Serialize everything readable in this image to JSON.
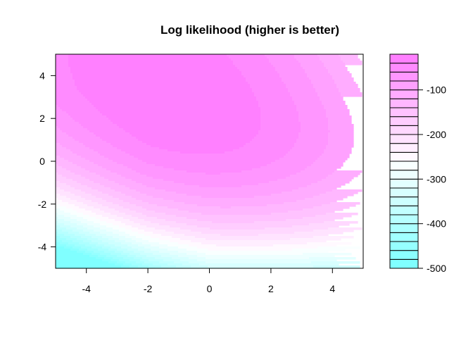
{
  "chart_data": {
    "type": "heatmap",
    "title": "Log likelihood (higher is better)",
    "xlabel": "",
    "ylabel": "",
    "xlim": [
      -5,
      5
    ],
    "ylim": [
      -5,
      5
    ],
    "x_ticks": [
      -4,
      -2,
      0,
      2,
      4
    ],
    "y_ticks": [
      -4,
      -2,
      0,
      2,
      4
    ],
    "z_range": [
      -500,
      -20
    ],
    "z_levels": [
      -500,
      -480,
      -460,
      -440,
      -420,
      -400,
      -380,
      -360,
      -340,
      -320,
      -300,
      -280,
      -260,
      -240,
      -220,
      -200,
      -180,
      -160,
      -140,
      -120,
      -100,
      -80,
      -60,
      -40,
      -20
    ],
    "colorbar_ticks": [
      -100,
      -200,
      -300,
      -400,
      -500
    ],
    "colorbar_ticks_labels": [
      "-100",
      "-200",
      "-300",
      "-400",
      "-500"
    ],
    "maximum": {
      "x": -1.4,
      "y": 3.2,
      "z": -20
    },
    "color_low": "#80FFFF",
    "color_mid": "#FFFFFF",
    "color_high": "#FF80FF",
    "palette": "cm.colors",
    "filled_contours": true
  }
}
